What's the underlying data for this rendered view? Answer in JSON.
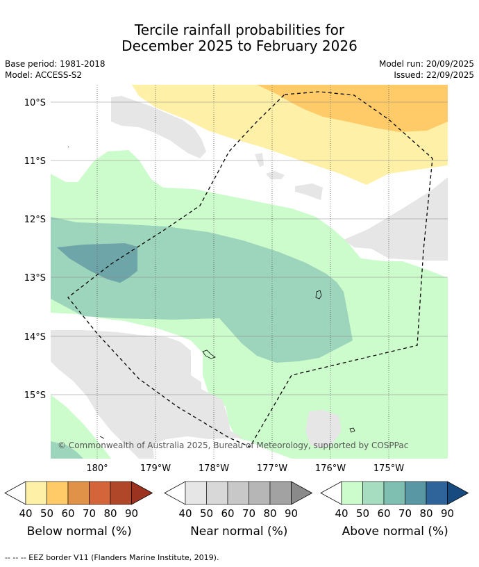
{
  "title_line1": "Tercile rainfall probabilities for",
  "title_line2": "December 2025 to February 2026",
  "base_period": "Base period: 1981-2018",
  "model": "Model: ACCESS-S2",
  "model_run": "Model run: 20/09/2025",
  "issued": "Issued: 22/09/2025",
  "copyright": "© Commonwealth of Australia 2025, Bureau of Meteorology, supported by COSPPac",
  "lat_labels": [
    "10°S",
    "11°S",
    "12°S",
    "13°S",
    "14°S",
    "15°S"
  ],
  "lon_labels": [
    "180°",
    "179°W",
    "178°W",
    "177°W",
    "176°W",
    "175°W"
  ],
  "colorbars": [
    {
      "title": "Below normal (%)",
      "ticks": [
        "40",
        "50",
        "60",
        "70",
        "80",
        "90"
      ],
      "colors": [
        "#fff0a8",
        "#ffcb69",
        "#e09249",
        "#d4653a",
        "#b04729",
        "#9c3320"
      ]
    },
    {
      "title": "Near normal (%)",
      "ticks": [
        "40",
        "50",
        "60",
        "70",
        "80",
        "90"
      ],
      "colors": [
        "#e6e6e6",
        "#d8d8d8",
        "#c8c8c8",
        "#b6b6b6",
        "#a2a2a2",
        "#8a8a8a"
      ]
    },
    {
      "title": "Above normal (%)",
      "ticks": [
        "40",
        "50",
        "60",
        "70",
        "80",
        "90"
      ],
      "colors": [
        "#ccfccc",
        "#a6dcc0",
        "#7fbfb2",
        "#5a97a4",
        "#2e6499",
        "#174a7e"
      ]
    }
  ],
  "footer": "--  --  -- EEZ border V11 (Flanders Marine Institute, 2019)."
}
